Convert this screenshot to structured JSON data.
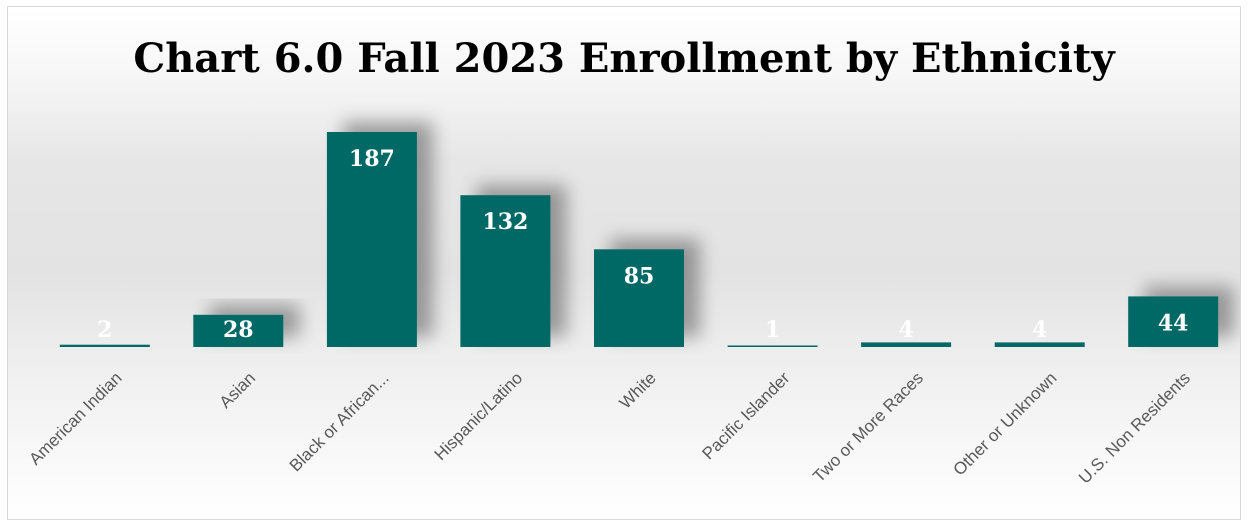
{
  "chart_data": {
    "type": "bar",
    "title": "Chart 6.0 Fall 2023 Enrollment by Ethnicity",
    "categories": [
      "American Indian",
      "Asian",
      "Black or African...",
      "Hispanic/Latino",
      "White",
      "Pacific Islander",
      "Two or More Races",
      "Other or Unknown",
      "U.S. Non Residents"
    ],
    "values": [
      2,
      28,
      187,
      132,
      85,
      1,
      4,
      4,
      44
    ],
    "ylim": [
      0,
      187
    ],
    "grid": false,
    "data_labels": true,
    "colors": {
      "bar": "#006865",
      "data_label": "#ffffff",
      "tick_label": "#595959",
      "title": "#000000"
    }
  }
}
